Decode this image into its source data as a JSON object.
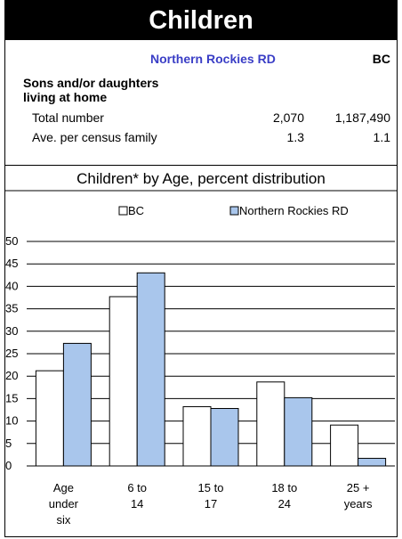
{
  "header": {
    "title": "Children",
    "region_label": "Northern Rockies RD",
    "bc_label": "BC"
  },
  "summary": {
    "section_title_line1": "Sons and/or daughters",
    "section_title_line2": "living at home",
    "rows": [
      {
        "label": "Total number",
        "region": "2,070",
        "bc": "1,187,490"
      },
      {
        "label": "Ave. per census family",
        "region": "1.3",
        "bc": "1.1"
      }
    ]
  },
  "chart_data": {
    "type": "bar",
    "title": "Children* by Age, percent distribution",
    "categories": [
      [
        "Age",
        "under",
        "six"
      ],
      [
        "6 to",
        "14"
      ],
      [
        "15 to",
        "17"
      ],
      [
        "18 to",
        "24"
      ],
      [
        "25 +",
        "years"
      ]
    ],
    "series": [
      {
        "name": "BC",
        "color": "#ffffff",
        "values": [
          21.2,
          37.7,
          13.2,
          18.7,
          9.1
        ]
      },
      {
        "name": "Northern Rockies RD",
        "color": "#a9c6ec",
        "values": [
          27.3,
          43.0,
          12.8,
          15.2,
          1.7
        ]
      }
    ],
    "ylim": [
      0,
      50
    ],
    "yticks": [
      0,
      5,
      10,
      15,
      20,
      25,
      30,
      35,
      40,
      45,
      50
    ],
    "grid": true,
    "legend": "top"
  }
}
